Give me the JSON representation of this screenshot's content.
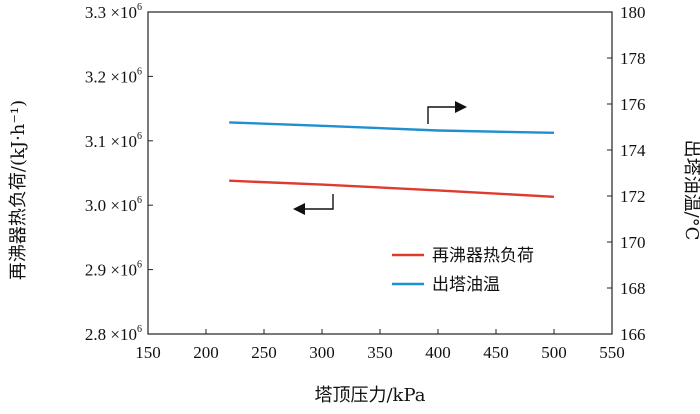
{
  "chart_data": {
    "type": "line",
    "xlabel": "塔顶压力/kPa",
    "ylabel_left": "再沸器热负荷/(kJ·h⁻¹)",
    "ylabel_right": "出塔油温/°C",
    "x_range": [
      150,
      550
    ],
    "y_left_range": [
      2800000,
      3300000
    ],
    "y_right_range": [
      166,
      180
    ],
    "x_ticks": [
      150,
      200,
      250,
      300,
      350,
      400,
      450,
      500,
      550
    ],
    "y_left_ticks": [
      {
        "value": 2800000,
        "mantissa": "2.8",
        "times": "×10",
        "exp": "6"
      },
      {
        "value": 2900000,
        "mantissa": "2.9",
        "times": "×10",
        "exp": "6"
      },
      {
        "value": 3000000,
        "mantissa": "3.0",
        "times": "×10",
        "exp": "6"
      },
      {
        "value": 3100000,
        "mantissa": "3.1",
        "times": "×10",
        "exp": "6"
      },
      {
        "value": 3200000,
        "mantissa": "3.2",
        "times": "×10",
        "exp": "6"
      },
      {
        "value": 3300000,
        "mantissa": "3.3",
        "times": "×10",
        "exp": "6"
      }
    ],
    "y_right_ticks": [
      166,
      168,
      170,
      172,
      174,
      176,
      178,
      180
    ],
    "grid": false,
    "legend_position": "lower-right",
    "series": [
      {
        "name": "再沸器热负荷",
        "axis": "left",
        "color": "#e03a2f",
        "x": [
          220,
          300,
          400,
          500
        ],
        "y": [
          3038000,
          3032000,
          3023000,
          3013000
        ]
      },
      {
        "name": "出塔油温",
        "axis": "right",
        "color": "#1f8fd0",
        "x": [
          220,
          300,
          400,
          500
        ],
        "y": [
          175.2,
          175.05,
          174.85,
          174.75
        ]
      }
    ],
    "annotations": [
      {
        "type": "axis-pointer-arrow",
        "direction": "right",
        "target_axis": "right"
      },
      {
        "type": "axis-pointer-arrow",
        "direction": "left",
        "target_axis": "left"
      }
    ]
  }
}
